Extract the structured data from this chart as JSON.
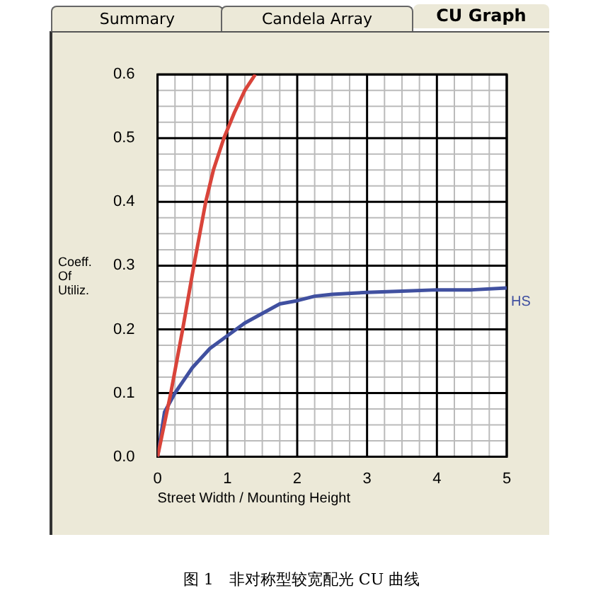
{
  "chart_data": {
    "type": "line",
    "xlabel": "Street Width / Mounting Height",
    "ylabel": "Coeff.\nOf\nUtiliz.",
    "annotations": [
      "Summary",
      "Candela Array",
      "CU Graph",
      "图 1　非对称型较宽配光 CU 曲线"
    ],
    "xlim": [
      0,
      5
    ],
    "xticks": [
      0,
      1,
      2,
      3,
      4,
      5
    ],
    "ylim": [
      0,
      0.6
    ],
    "yticks": [
      {
        "value": 0,
        "label": "0.0"
      },
      0.1,
      0.2,
      0.3,
      0.4,
      0.5,
      0.6
    ],
    "grid": true,
    "legend": false,
    "marker": "none",
    "line_style": "solid",
    "series": [
      {
        "color": "#d9443a",
        "x": [
          0,
          0.19,
          0.36,
          0.52,
          0.69,
          0.8,
          0.95,
          1.1,
          1.25,
          1.4
        ],
        "values": [
          0,
          0.1,
          0.2,
          0.3,
          0.4,
          0.45,
          0.5,
          0.54,
          0.575,
          0.6
        ]
      },
      {
        "name": "HS",
        "color": "#4050a0",
        "x": [
          0,
          0.1,
          0.25,
          0.5,
          0.75,
          1,
          1.25,
          1.5,
          1.75,
          2,
          2.25,
          2.5,
          3,
          3.5,
          4,
          4.5,
          5
        ],
        "values": [
          0,
          0.07,
          0.1,
          0.14,
          0.17,
          0.19,
          0.21,
          0.225,
          0.24,
          0.245,
          0.252,
          0.255,
          0.258,
          0.26,
          0.262,
          0.262,
          0.265
        ]
      }
    ]
  }
}
